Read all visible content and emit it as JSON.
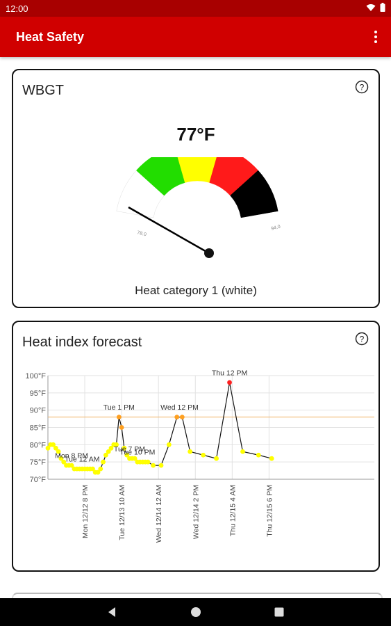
{
  "status_bar": {
    "time": "12:00"
  },
  "app_bar": {
    "title": "Heat Safety"
  },
  "wbgt_card": {
    "title": "WBGT",
    "value": "77°F",
    "gauge_min_label": "78.0",
    "gauge_max_label": "94.0",
    "category": "Heat category 1 (white)",
    "gauge_colors": [
      "#ffffff",
      "#22dd00",
      "#ffff00",
      "#ff1a1a",
      "#000000"
    ]
  },
  "forecast_card": {
    "title": "Heat index forecast"
  },
  "chart_data": {
    "type": "line",
    "ylabel": "",
    "xlabel": "",
    "ylim": [
      70,
      100
    ],
    "yticks": [
      "70°F",
      "75°F",
      "80°F",
      "85°F",
      "90°F",
      "95°F",
      "100°F"
    ],
    "xlim": [
      0,
      124
    ],
    "xticks": [
      {
        "label": "Mon 12/12 8 PM",
        "x": 14
      },
      {
        "label": "Tue 12/13 10 AM",
        "x": 28
      },
      {
        "label": "Wed 12/14 12 AM",
        "x": 42
      },
      {
        "label": "Wed 12/14 2 PM",
        "x": 56
      },
      {
        "label": "Thu 12/15 4 AM",
        "x": 70
      },
      {
        "label": "Thu 12/15 6 PM",
        "x": 84
      }
    ],
    "reference_line": {
      "value": 88,
      "color": "#f0b060"
    },
    "series": [
      {
        "points": [
          {
            "x": 0,
            "y": 79,
            "c": "#ffff00"
          },
          {
            "x": 1,
            "y": 80,
            "c": "#ffff00"
          },
          {
            "x": 2,
            "y": 80,
            "c": "#ffff00"
          },
          {
            "x": 3,
            "y": 79,
            "c": "#ffff00"
          },
          {
            "x": 4,
            "y": 78,
            "c": "#ffff00"
          },
          {
            "x": 5,
            "y": 76,
            "c": "#ffff00"
          },
          {
            "x": 6,
            "y": 75,
            "c": "#ffff00"
          },
          {
            "x": 7,
            "y": 74,
            "c": "#ffff00"
          },
          {
            "x": 8,
            "y": 74,
            "c": "#ffff00"
          },
          {
            "x": 9,
            "y": 74,
            "c": "#ffff00"
          },
          {
            "x": 10,
            "y": 73,
            "c": "#ffff00"
          },
          {
            "x": 11,
            "y": 73,
            "c": "#ffff00"
          },
          {
            "x": 12,
            "y": 73,
            "c": "#ffff00"
          },
          {
            "x": 13,
            "y": 73,
            "c": "#ffff00"
          },
          {
            "x": 14,
            "y": 73,
            "c": "#ffff00"
          },
          {
            "x": 15,
            "y": 73,
            "c": "#ffff00"
          },
          {
            "x": 16,
            "y": 73,
            "c": "#ffff00"
          },
          {
            "x": 17,
            "y": 73,
            "c": "#ffff00"
          },
          {
            "x": 18,
            "y": 72,
            "c": "#ffff00"
          },
          {
            "x": 19,
            "y": 72,
            "c": "#ffff00"
          },
          {
            "x": 20,
            "y": 73,
            "c": "#ffff00"
          },
          {
            "x": 21,
            "y": 75,
            "c": "#ffff00"
          },
          {
            "x": 22,
            "y": 77,
            "c": "#ffff00"
          },
          {
            "x": 23,
            "y": 78,
            "c": "#ffff00"
          },
          {
            "x": 24,
            "y": 79,
            "c": "#ffff00"
          },
          {
            "x": 25,
            "y": 80,
            "c": "#ffff00"
          },
          {
            "x": 26,
            "y": 80,
            "c": "#ffff00"
          },
          {
            "x": 27,
            "y": 88,
            "c": "#ffa020"
          },
          {
            "x": 28,
            "y": 85,
            "c": "#ffa020"
          },
          {
            "x": 29,
            "y": 79,
            "c": "#ffff00"
          },
          {
            "x": 30,
            "y": 77,
            "c": "#ffff00"
          },
          {
            "x": 31,
            "y": 76,
            "c": "#ffff00"
          },
          {
            "x": 32,
            "y": 76,
            "c": "#ffff00"
          },
          {
            "x": 33,
            "y": 76,
            "c": "#ffff00"
          },
          {
            "x": 34,
            "y": 75,
            "c": "#ffff00"
          },
          {
            "x": 35,
            "y": 75,
            "c": "#ffff00"
          },
          {
            "x": 36,
            "y": 75,
            "c": "#ffff00"
          },
          {
            "x": 37,
            "y": 75,
            "c": "#ffff00"
          },
          {
            "x": 38,
            "y": 75,
            "c": "#ffff00"
          },
          {
            "x": 40,
            "y": 74,
            "c": "#ffff00"
          },
          {
            "x": 43,
            "y": 74,
            "c": "#ffff00"
          },
          {
            "x": 46,
            "y": 80,
            "c": "#ffff00"
          },
          {
            "x": 49,
            "y": 88,
            "c": "#ffa020"
          },
          {
            "x": 51,
            "y": 88,
            "c": "#ffa020"
          },
          {
            "x": 54,
            "y": 78,
            "c": "#ffff00"
          },
          {
            "x": 59,
            "y": 77,
            "c": "#ffff00"
          },
          {
            "x": 64,
            "y": 76,
            "c": "#ffff00"
          },
          {
            "x": 69,
            "y": 98,
            "c": "#ff2020"
          },
          {
            "x": 74,
            "y": 78,
            "c": "#ffff00"
          },
          {
            "x": 80,
            "y": 77,
            "c": "#ffff00"
          },
          {
            "x": 85,
            "y": 76,
            "c": "#ffff00"
          }
        ]
      }
    ],
    "annotations": [
      {
        "text": "Mon 8 PM",
        "x": 9,
        "y": 75.5
      },
      {
        "text": "Tue 12 AM",
        "x": 13,
        "y": 74.5
      },
      {
        "text": "Tue 1 PM",
        "x": 27,
        "y": 89.5
      },
      {
        "text": "Tue 7 PM",
        "x": 31,
        "y": 77.5
      },
      {
        "text": "Tue 10 PM",
        "x": 34,
        "y": 76.5
      },
      {
        "text": "Wed 12 PM",
        "x": 50,
        "y": 89.5
      },
      {
        "text": "Thu 12 PM",
        "x": 69,
        "y": 99.5
      }
    ]
  }
}
